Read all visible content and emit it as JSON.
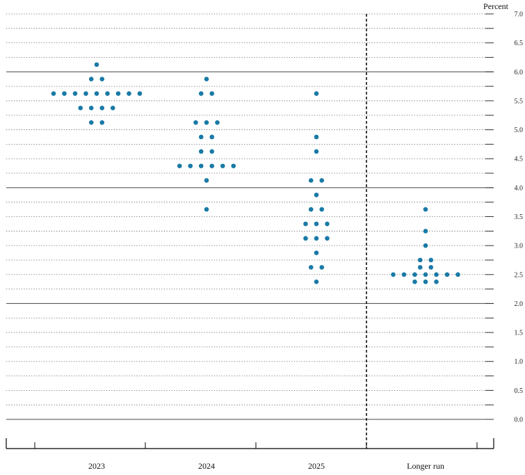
{
  "chart_data": {
    "type": "scatter",
    "ylabel": "Percent",
    "ylim": [
      0,
      7
    ],
    "yticks": [
      "0.0",
      "0.5",
      "1.0",
      "1.5",
      "2.0",
      "2.5",
      "3.0",
      "3.5",
      "4.0",
      "4.5",
      "5.0",
      "5.5",
      "6.0",
      "6.5",
      "7.0"
    ],
    "categories": [
      "2023",
      "2024",
      "2025",
      "Longer run"
    ],
    "dot_color": "#1a7aa6",
    "series": [
      {
        "category": "2023",
        "dots": [
          {
            "y": 6.125,
            "count": 1
          },
          {
            "y": 5.875,
            "count": 2
          },
          {
            "y": 5.625,
            "count": 9
          },
          {
            "y": 5.375,
            "count": 4
          },
          {
            "y": 5.125,
            "count": 2
          }
        ]
      },
      {
        "category": "2024",
        "dots": [
          {
            "y": 5.875,
            "count": 1
          },
          {
            "y": 5.625,
            "count": 2
          },
          {
            "y": 5.125,
            "count": 3
          },
          {
            "y": 4.875,
            "count": 2
          },
          {
            "y": 4.625,
            "count": 2
          },
          {
            "y": 4.375,
            "count": 6
          },
          {
            "y": 4.125,
            "count": 1
          },
          {
            "y": 3.625,
            "count": 1
          }
        ]
      },
      {
        "category": "2025",
        "dots": [
          {
            "y": 5.625,
            "count": 1
          },
          {
            "y": 4.875,
            "count": 1
          },
          {
            "y": 4.625,
            "count": 1
          },
          {
            "y": 4.125,
            "count": 2
          },
          {
            "y": 3.875,
            "count": 1
          },
          {
            "y": 3.625,
            "count": 2
          },
          {
            "y": 3.375,
            "count": 3
          },
          {
            "y": 3.125,
            "count": 3
          },
          {
            "y": 2.875,
            "count": 1
          },
          {
            "y": 2.625,
            "count": 2
          },
          {
            "y": 2.375,
            "count": 1
          }
        ]
      },
      {
        "category": "Longer run",
        "dots": [
          {
            "y": 3.625,
            "count": 1
          },
          {
            "y": 3.25,
            "count": 1
          },
          {
            "y": 3.0,
            "count": 1
          },
          {
            "y": 2.75,
            "count": 2
          },
          {
            "y": 2.625,
            "count": 2
          },
          {
            "y": 2.5,
            "count": 7
          },
          {
            "y": 2.375,
            "count": 3
          }
        ]
      }
    ]
  }
}
